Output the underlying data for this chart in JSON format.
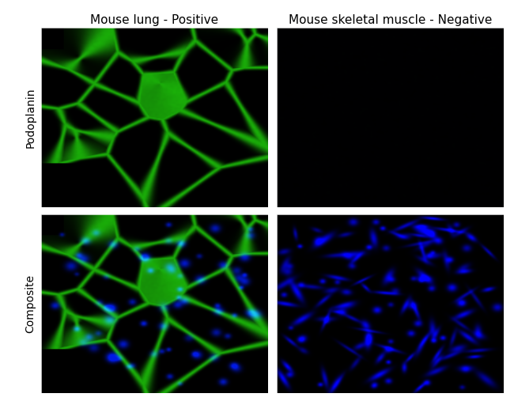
{
  "title_col1": "Mouse lung - Positive",
  "title_col2": "Mouse skeletal muscle - Negative",
  "row_label1": "Podoplanin",
  "row_label2": "Composite",
  "bg_color": "#000000",
  "fig_bg": "#ffffff",
  "title_fontsize": 11,
  "label_fontsize": 10,
  "figsize": [
    6.5,
    5.07
  ],
  "dpi": 100
}
